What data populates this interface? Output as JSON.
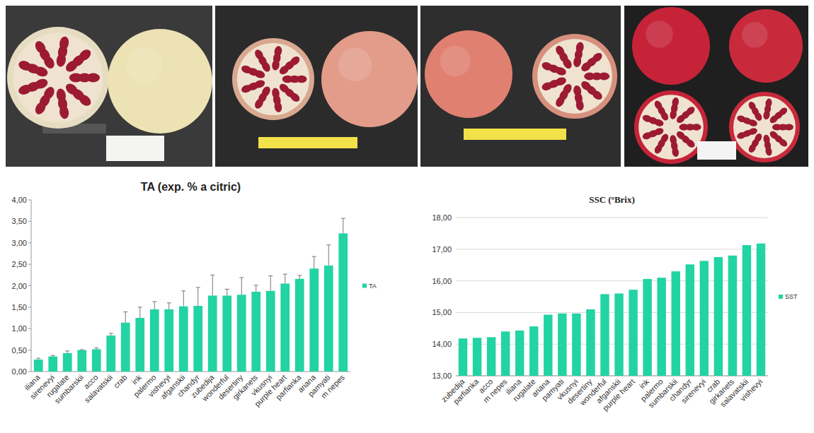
{
  "chart_data": [
    {
      "type": "bar",
      "title": "TA (exp. % a citric)",
      "categories": [
        "iliana",
        "sirenevyi",
        "rugalate",
        "sumbarskii",
        "acco",
        "salavatskii",
        "crab",
        "ink",
        "palermo",
        "vishevyi",
        "afganskii",
        "chandyr",
        "zubedija",
        "wonderful",
        "desertiny",
        "girkanets",
        "vkusnyi",
        "purple heart",
        "parfianka",
        "ariana",
        "pamyati",
        "m nepes"
      ],
      "series": [
        {
          "name": "TA",
          "color": "#22d3a3",
          "values": [
            0.28,
            0.35,
            0.43,
            0.5,
            0.52,
            0.84,
            1.14,
            1.25,
            1.45,
            1.45,
            1.52,
            1.53,
            1.77,
            1.77,
            1.79,
            1.86,
            1.88,
            2.05,
            2.16,
            2.4,
            2.47,
            3.22
          ],
          "errors": [
            0.03,
            0.02,
            0.05,
            0.01,
            0.03,
            0.05,
            0.25,
            0.25,
            0.18,
            0.15,
            0.36,
            0.43,
            0.48,
            0.15,
            0.4,
            0.15,
            0.35,
            0.22,
            0.08,
            0.28,
            0.48,
            0.35
          ]
        }
      ],
      "ylim": [
        0,
        4
      ],
      "yticks": [
        {
          "value": 0,
          "label": "0,00"
        },
        {
          "value": 0.5,
          "label": "0,50"
        },
        {
          "value": 1,
          "label": "1,00"
        },
        {
          "value": 1.5,
          "label": "1,50"
        },
        {
          "value": 2,
          "label": "2,00"
        },
        {
          "value": 2.5,
          "label": "2,50"
        },
        {
          "value": 3,
          "label": "3,00"
        },
        {
          "value": 3.5,
          "label": "3,50"
        },
        {
          "value": 4,
          "label": "4,00"
        }
      ],
      "grid": false,
      "legend": "right"
    },
    {
      "type": "bar",
      "title": "SSC  (ºBrix)",
      "categories": [
        "zubedija",
        "parfianka",
        "acco",
        "m nepes",
        "iliana",
        "rugalate",
        "ariana",
        "pamyati",
        "vkusnyi",
        "desertiny",
        "wonderful",
        "afganskii",
        "purple heart",
        "ink",
        "palermo",
        "sumbarskii",
        "chandyr",
        "sirenevyi",
        "crab",
        "girkanets",
        "salavatskii",
        "vishevyi"
      ],
      "series": [
        {
          "name": "SST",
          "color": "#22d3a3",
          "values": [
            14.18,
            14.2,
            14.22,
            14.4,
            14.43,
            14.56,
            14.93,
            14.97,
            14.97,
            15.1,
            15.58,
            15.6,
            15.72,
            16.06,
            16.1,
            16.3,
            16.52,
            16.63,
            16.75,
            16.8,
            17.13,
            17.18
          ]
        }
      ],
      "ylim": [
        13,
        18
      ],
      "yticks": [
        {
          "value": 13,
          "label": "13,00"
        },
        {
          "value": 14,
          "label": "14,00"
        },
        {
          "value": 15,
          "label": "15,00"
        },
        {
          "value": 16,
          "label": "16,00"
        },
        {
          "value": 17,
          "label": "17,00"
        },
        {
          "value": 18,
          "label": "18,00"
        }
      ],
      "grid": true,
      "legend": "right"
    }
  ]
}
